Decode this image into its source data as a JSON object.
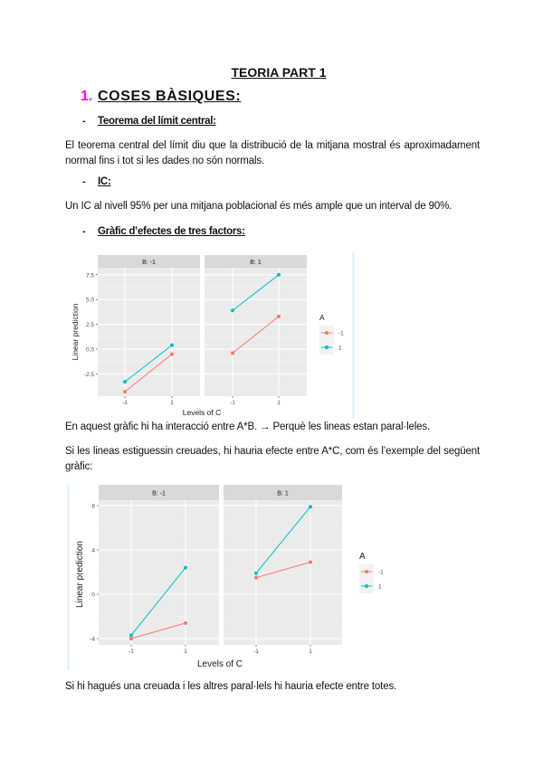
{
  "document": {
    "title": "TEORIA PART 1",
    "section": {
      "number": "1.",
      "heading": "COSES BÀSIQUES:",
      "number_color": "#ff00ff"
    },
    "subsections": [
      {
        "bullet": "-",
        "heading": "Teorema del límit central:",
        "text": "El teorema central del límit diu que la distribució de la mitjana mostral és aproximadament normal fins i tot si les dades no són normals."
      },
      {
        "bullet": "-",
        "heading": "IC:",
        "text": "Un IC al nivell 95% per una mitjana poblacional és més ample que un interval de 90%."
      },
      {
        "bullet": "-",
        "heading": "Gràfic d’efectes de tres factors:",
        "text_after_chart_1": "En aquest gràfic hi ha interacció entre A*B. → Perquè les lineas estan paral·leles.",
        "text_before_chart_2": "Si les lineas estiguessin creuades, hi hauria efecte entre A*C, com és l’exemple del següent gràfic:",
        "text_after_chart_2": "Si hi hagués una creuada i les altres paral·lels hi hauria efecte entre totes."
      }
    ]
  },
  "chart_data": [
    {
      "type": "line",
      "title": "",
      "facets": [
        "B: -1",
        "B: 1"
      ],
      "xlabel": "Levels of C",
      "ylabel": "Linear prediction",
      "categories": [
        "-1",
        "1"
      ],
      "yticks": [
        "7.5",
        "5.0",
        "2.5",
        "0.0",
        "-2.5"
      ],
      "ylim": [
        -4.8,
        8.3
      ],
      "grid": true,
      "legend": {
        "title": "A",
        "position": "right",
        "entries": [
          "-1",
          "1"
        ]
      },
      "series": [
        {
          "name": "-1",
          "color": "#f8766d",
          "facet_values": {
            "B: -1": [
              -4.3,
              -0.5
            ],
            "B: 1": [
              -0.4,
              3.3
            ]
          }
        },
        {
          "name": "1",
          "color": "#00bfc4",
          "facet_values": {
            "B: -1": [
              -3.3,
              0.4
            ],
            "B: 1": [
              3.9,
              7.5
            ]
          }
        }
      ]
    },
    {
      "type": "line",
      "title": "",
      "facets": [
        "B: -1",
        "B: 1"
      ],
      "xlabel": "Levels of C",
      "ylabel": "Linear prediction",
      "categories": [
        "-1",
        "1"
      ],
      "yticks": [
        "8",
        "4",
        "0",
        "-4"
      ],
      "ylim": [
        -4.4,
        8.8
      ],
      "grid": true,
      "legend": {
        "title": "A",
        "position": "right",
        "entries": [
          "-1",
          "1"
        ]
      },
      "series": [
        {
          "name": "-1",
          "color": "#f8766d",
          "facet_values": {
            "B: -1": [
              -4.0,
              -2.6
            ],
            "B: 1": [
              1.5,
              2.9
            ]
          }
        },
        {
          "name": "1",
          "color": "#00bfc4",
          "facet_values": {
            "B: -1": [
              -3.7,
              2.4
            ],
            "B: 1": [
              1.9,
              7.9
            ]
          }
        }
      ]
    }
  ]
}
